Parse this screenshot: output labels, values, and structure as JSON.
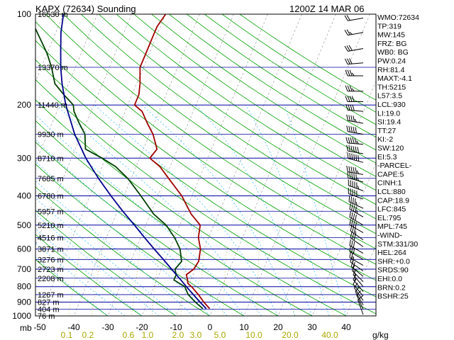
{
  "header": {
    "title": "KAPX (72634) Sounding",
    "time": "1200Z 14 MAR 06"
  },
  "colors": {
    "isobar": "#0000a0",
    "dry_adiabat": "#00a000",
    "moist_adiabat": "#40c0ff",
    "temperature": "#a00000",
    "dewpoint": "#004000",
    "parcel": "#00008c",
    "mixing_ratio": "#a8a800"
  },
  "chart_data": {
    "type": "skew-t",
    "title": "KAPX (72634) Sounding",
    "subtitle": "1200Z 14 MAR 06",
    "xlabel": "",
    "x_unit_label": "g/kg",
    "temp_ticks": [
      "-50",
      "-40",
      "-30",
      "-20",
      "-10",
      "0",
      "10",
      "20",
      "30",
      "40"
    ],
    "temp_tick_values": [
      -50,
      -40,
      -30,
      -20,
      -10,
      0,
      10,
      20,
      30,
      40
    ],
    "x_range": [
      -50,
      50
    ],
    "pressure_ticks": [
      "100",
      "200",
      "300",
      "400",
      "500",
      "600",
      "700",
      "800",
      "900",
      "1000"
    ],
    "pressure_tick_values": [
      100,
      200,
      300,
      400,
      500,
      600,
      700,
      800,
      900,
      1000
    ],
    "y_range": [
      100,
      1000
    ],
    "y_scale": "log",
    "axis_unit_label": "mb",
    "mixing_ratio_labels": [
      "0.1",
      "0.2",
      "0.6",
      "1.0",
      "2.0",
      "3.0",
      "5.0",
      "10.0",
      "20.0",
      "40.0"
    ],
    "mixing_ratio_values": [
      0.1,
      0.2,
      0.6,
      1.0,
      2.0,
      3.0,
      5.0,
      10.0,
      20.0,
      40.0
    ],
    "height_labels": [
      {
        "p": 100,
        "text": "16530 m"
      },
      {
        "p": 150,
        "text": "13370 m"
      },
      {
        "p": 200,
        "text": "11440 m"
      },
      {
        "p": 250,
        "text": "9930 m"
      },
      {
        "p": 300,
        "text": "8710 m"
      },
      {
        "p": 350,
        "text": "7685 m"
      },
      {
        "p": 400,
        "text": "6780 m"
      },
      {
        "p": 450,
        "text": "5957 m"
      },
      {
        "p": 500,
        "text": "5210 m"
      },
      {
        "p": 550,
        "text": "4516 m"
      },
      {
        "p": 600,
        "text": "3871 m"
      },
      {
        "p": 650,
        "text": "3276 m"
      },
      {
        "p": 700,
        "text": "2723 m"
      },
      {
        "p": 750,
        "text": "2208 m"
      },
      {
        "p": 850,
        "text": "1267 m"
      },
      {
        "p": 900,
        "text": "827 m"
      },
      {
        "p": 950,
        "text": "404 m"
      },
      {
        "p": 1000,
        "text": "76 m"
      }
    ],
    "series": [
      {
        "key": "temperature",
        "p": [
          946,
          900,
          850,
          800,
          780,
          760,
          730,
          700,
          660,
          600,
          550,
          500,
          460,
          400,
          350,
          320,
          300,
          280,
          250,
          230,
          210,
          200,
          185,
          170,
          150,
          135,
          120,
          110,
          100
        ],
        "t": [
          -1,
          -3.5,
          -6,
          -9,
          -10.5,
          -11,
          -12,
          -10.5,
          -10,
          -11,
          -13,
          -14,
          -18,
          -23,
          -29,
          -33,
          -37,
          -36,
          -39,
          -42,
          -45,
          -48,
          -48,
          -49,
          -51,
          -51,
          -51,
          -51,
          -50
        ]
      },
      {
        "key": "dewpoint",
        "p": [
          946,
          900,
          850,
          800,
          780,
          760,
          730,
          700,
          660,
          600,
          550,
          500,
          460,
          400,
          350,
          320,
          300,
          280,
          250,
          230,
          210,
          200,
          185,
          170,
          150,
          135,
          120,
          110,
          100
        ],
        "t": [
          -3,
          -6,
          -9,
          -11,
          -13,
          -15,
          -15,
          -16,
          -15,
          -17,
          -20,
          -24,
          -29,
          -35,
          -41,
          -46,
          -51,
          -57,
          -59,
          -62,
          -65,
          -66,
          -70,
          -74,
          -77,
          -80,
          -84,
          -87,
          -90
        ]
      },
      {
        "key": "parcel",
        "p": [
          946,
          900,
          850,
          800,
          750,
          700,
          650,
          600,
          550,
          500,
          450,
          400,
          350,
          300,
          250,
          200,
          170,
          150,
          130,
          115,
          100
        ],
        "t": [
          -2,
          -4.6,
          -7.5,
          -10.5,
          -13.6,
          -17,
          -20.6,
          -24.6,
          -28.8,
          -33.3,
          -38.4,
          -43.8,
          -49.6,
          -55.8,
          -62,
          -68.2,
          -71.9,
          -74.3,
          -76.6,
          -78.5,
          -80
        ]
      }
    ],
    "wind_barbs": [
      {
        "p": 990,
        "dir": 340,
        "spd": 10
      },
      {
        "p": 950,
        "dir": 335,
        "spd": 10
      },
      {
        "p": 920,
        "dir": 330,
        "spd": 12
      },
      {
        "p": 890,
        "dir": 325,
        "spd": 13
      },
      {
        "p": 860,
        "dir": 320,
        "spd": 14
      },
      {
        "p": 830,
        "dir": 320,
        "spd": 15
      },
      {
        "p": 800,
        "dir": 320,
        "spd": 15
      },
      {
        "p": 770,
        "dir": 315,
        "spd": 17
      },
      {
        "p": 740,
        "dir": 310,
        "spd": 20
      },
      {
        "p": 710,
        "dir": 305,
        "spd": 24
      },
      {
        "p": 680,
        "dir": 300,
        "spd": 28
      },
      {
        "p": 650,
        "dir": 300,
        "spd": 30
      },
      {
        "p": 620,
        "dir": 300,
        "spd": 30
      },
      {
        "p": 590,
        "dir": 305,
        "spd": 32
      },
      {
        "p": 560,
        "dir": 305,
        "spd": 35
      },
      {
        "p": 530,
        "dir": 300,
        "spd": 40
      },
      {
        "p": 500,
        "dir": 300,
        "spd": 40
      },
      {
        "p": 470,
        "dir": 300,
        "spd": 45
      },
      {
        "p": 440,
        "dir": 295,
        "spd": 45
      },
      {
        "p": 410,
        "dir": 290,
        "spd": 50
      },
      {
        "p": 385,
        "dir": 290,
        "spd": 55
      },
      {
        "p": 360,
        "dir": 285,
        "spd": 55
      },
      {
        "p": 340,
        "dir": 280,
        "spd": 55
      },
      {
        "p": 310,
        "dir": 285,
        "spd": 60
      },
      {
        "p": 290,
        "dir": 280,
        "spd": 60
      },
      {
        "p": 270,
        "dir": 275,
        "spd": 55
      },
      {
        "p": 250,
        "dir": 280,
        "spd": 50
      },
      {
        "p": 230,
        "dir": 280,
        "spd": 45
      },
      {
        "p": 210,
        "dir": 275,
        "spd": 40
      },
      {
        "p": 195,
        "dir": 270,
        "spd": 40
      },
      {
        "p": 180,
        "dir": 270,
        "spd": 35
      },
      {
        "p": 160,
        "dir": 270,
        "spd": 35
      },
      {
        "p": 145,
        "dir": 265,
        "spd": 30
      },
      {
        "p": 130,
        "dir": 260,
        "spd": 30
      },
      {
        "p": 115,
        "dir": 260,
        "spd": 25
      },
      {
        "p": 103,
        "dir": 260,
        "spd": 20
      }
    ]
  },
  "indices": [
    "WMO:72634",
    "TP:319",
    "MW:145",
    "FRZ: BG",
    "WB0: BG",
    "PW:0.24",
    "RH:81.4",
    "MAXT:-4.1",
    "TH:5215",
    "L57:3.5",
    "LCL:930",
    "LI:19.0",
    "SI:19.4",
    "TT:27",
    "KI:-2",
    "SW:120",
    "EI:5.3",
    "-PARCEL-",
    "CAPE:5",
    "CINH:1",
    "LCL:880",
    "CAP:18.9",
    "LFC:845",
    "EL:795",
    "MPL:745",
    "-WIND-",
    "STM:331/30",
    "HEL:264",
    "SHR:+0.0",
    "SRDS:90",
    "EHI:0.0",
    "BRN:0.2",
    "BSHR:25"
  ]
}
